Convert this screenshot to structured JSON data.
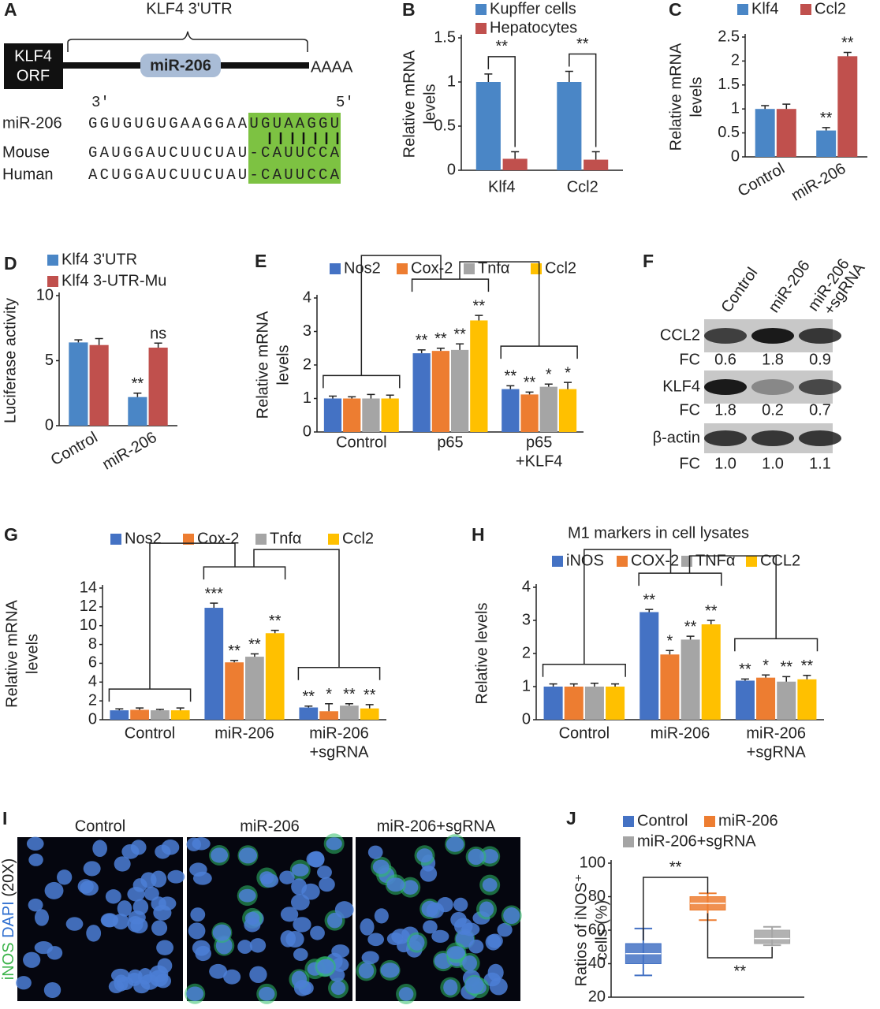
{
  "diagram": {
    "panel": "A",
    "utr_label": "KLF4 3'UTR",
    "orf_label": [
      "KLF4",
      "ORF"
    ],
    "mirna_box": "miR-206",
    "polya": "AAAA",
    "end_left": "3'",
    "end_right": "5'",
    "rows": [
      {
        "name": "miR-206",
        "sequence": "GGUGUGUGAAGGAAUGUAAGGU"
      },
      {
        "name": "Mouse",
        "sequence": "GAUGGAUCUUCUAU-CAUUCCA"
      },
      {
        "name": "Human",
        "sequence": "ACUGGAUCUUCUAU-CAUUCCA"
      }
    ]
  },
  "blot": {
    "panel": "F",
    "columns": [
      "Control",
      "miR-206",
      [
        "miR-206",
        "+sgRNA"
      ]
    ],
    "rows": [
      {
        "protein": "CCL2",
        "fc_label": "FC",
        "fc": [
          "0.6",
          "1.8",
          "0.9"
        ]
      },
      {
        "protein": "KLF4",
        "fc_label": "FC",
        "fc": [
          "1.8",
          "0.2",
          "0.7"
        ]
      },
      {
        "protein": "β-actin",
        "fc_label": "FC",
        "fc": [
          "1.0",
          "1.0",
          "1.1"
        ]
      }
    ]
  },
  "images": {
    "panel": "I",
    "columns": [
      "Control",
      "miR-206",
      "miR-206+sgRNA"
    ],
    "stain_labels": [
      "iNOS",
      "DAPI",
      "(20X)"
    ]
  },
  "chart_data": [
    {
      "type": "bar",
      "panel": "B",
      "y_label": [
        "Relative mRNA",
        "levels"
      ],
      "categories": [
        "Klf4",
        "Ccl2"
      ],
      "ylim": [
        0,
        1.5
      ],
      "yticks": [
        0,
        0.5,
        1,
        1.5
      ],
      "series": [
        {
          "name": "Kupffer cells",
          "color": "#4a86c6",
          "values": [
            1,
            1
          ],
          "errors": [
            0.09,
            0.12
          ]
        },
        {
          "name": "Hepatocytes",
          "color": "#c0504d",
          "values": [
            0.13,
            0.12
          ],
          "errors": [
            0.08,
            0.09
          ]
        }
      ],
      "bracket_labels": [
        "**",
        "**"
      ]
    },
    {
      "type": "bar",
      "panel": "C",
      "y_label": [
        "Relative mRNA",
        "levels"
      ],
      "categories": [
        "Control",
        "miR-206"
      ],
      "ylim": [
        0,
        2.5
      ],
      "yticks": [
        0,
        0.5,
        1,
        1.5,
        2,
        2.5
      ],
      "series": [
        {
          "name": "Klf4",
          "color": "#4a86c6",
          "values": [
            1,
            0.55
          ],
          "errors": [
            0.07,
            0.06
          ],
          "annotations": [
            null,
            "**"
          ]
        },
        {
          "name": "Ccl2",
          "color": "#c0504d",
          "values": [
            1,
            2.1
          ],
          "errors": [
            0.1,
            0.08
          ],
          "annotations": [
            null,
            "**"
          ]
        }
      ]
    },
    {
      "type": "bar",
      "panel": "D",
      "y_label": "Luciferase activity",
      "categories": [
        "Control",
        "miR-206"
      ],
      "ylim": [
        0,
        10
      ],
      "yticks": [
        0,
        5,
        10
      ],
      "series": [
        {
          "name": "Klf4 3'UTR",
          "color": "#4a86c6",
          "values": [
            6.4,
            2.2
          ],
          "errors": [
            0.2,
            0.3
          ],
          "annotations": [
            null,
            "**"
          ]
        },
        {
          "name": "Klf4 3-UTR-Mu",
          "color": "#c0504d",
          "values": [
            6.2,
            6.0
          ],
          "errors": [
            0.5,
            0.35
          ],
          "annotations": [
            null,
            "ns"
          ]
        }
      ]
    },
    {
      "type": "bar",
      "panel": "E",
      "y_label": [
        "Relative mRNA",
        "levels"
      ],
      "categories": [
        "Control",
        "p65",
        [
          "p65",
          "+KLF4"
        ]
      ],
      "ylim": [
        0,
        4
      ],
      "yticks": [
        0,
        1,
        2,
        3,
        4
      ],
      "series": [
        {
          "name": "Nos2",
          "color": "#4472c4",
          "values": [
            1,
            2.35,
            1.28
          ],
          "errors": [
            0.07,
            0.1,
            0.1
          ],
          "annotations": [
            null,
            "**",
            "**"
          ]
        },
        {
          "name": "Cox-2",
          "color": "#ed7d31",
          "values": [
            1,
            2.42,
            1.12
          ],
          "errors": [
            0.05,
            0.08,
            0.07
          ],
          "annotations": [
            null,
            "**",
            "**"
          ]
        },
        {
          "name": "Tnfα",
          "color": "#a5a5a5",
          "values": [
            1,
            2.45,
            1.35
          ],
          "errors": [
            0.12,
            0.18,
            0.08
          ],
          "annotations": [
            null,
            "**",
            "*"
          ]
        },
        {
          "name": "Ccl2",
          "color": "#ffc000",
          "values": [
            1,
            3.33,
            1.28
          ],
          "errors": [
            0.1,
            0.15,
            0.2
          ],
          "annotations": [
            null,
            "**",
            "*"
          ]
        }
      ]
    },
    {
      "type": "bar",
      "panel": "G",
      "y_label": [
        "Relative mRNA",
        "levels"
      ],
      "categories": [
        "Control",
        "miR-206",
        [
          "miR-206",
          "+sgRNA"
        ]
      ],
      "ylim": [
        0,
        14
      ],
      "yticks": [
        0,
        2,
        4,
        6,
        8,
        10,
        12,
        14
      ],
      "series": [
        {
          "name": "Nos2",
          "color": "#4472c4",
          "values": [
            1,
            11.9,
            1.3
          ],
          "errors": [
            0.15,
            0.5,
            0.15
          ],
          "annotations": [
            null,
            "***",
            "**"
          ]
        },
        {
          "name": "Cox-2",
          "color": "#ed7d31",
          "values": [
            1.05,
            6.1,
            0.9
          ],
          "errors": [
            0.2,
            0.2,
            0.8
          ],
          "annotations": [
            null,
            "**",
            "*"
          ]
        },
        {
          "name": "Tnfα",
          "color": "#a5a5a5",
          "values": [
            1,
            6.7,
            1.5
          ],
          "errors": [
            0.1,
            0.3,
            0.2
          ],
          "annotations": [
            null,
            "**",
            "**"
          ]
        },
        {
          "name": "Ccl2",
          "color": "#ffc000",
          "values": [
            1,
            9.2,
            1.2
          ],
          "errors": [
            0.25,
            0.3,
            0.4
          ],
          "annotations": [
            null,
            "**",
            "**"
          ]
        }
      ]
    },
    {
      "type": "bar",
      "panel": "H",
      "title": "M1 markers in cell lysates",
      "y_label": "Relative  levels",
      "categories": [
        "Control",
        "miR-206",
        [
          "miR-206",
          "+sgRNA"
        ]
      ],
      "ylim": [
        0,
        4
      ],
      "yticks": [
        0,
        1,
        2,
        3,
        4
      ],
      "series": [
        {
          "name": "iNOS",
          "color": "#4472c4",
          "values": [
            1,
            3.25,
            1.18
          ],
          "errors": [
            0.08,
            0.08,
            0.05
          ],
          "annotations": [
            null,
            "**",
            "**"
          ]
        },
        {
          "name": "COX-2",
          "color": "#ed7d31",
          "values": [
            1,
            1.97,
            1.27
          ],
          "errors": [
            0.08,
            0.12,
            0.08
          ],
          "annotations": [
            null,
            "*",
            "*"
          ]
        },
        {
          "name": "TNFα",
          "color": "#a5a5a5",
          "values": [
            1,
            2.42,
            1.15
          ],
          "errors": [
            0.1,
            0.1,
            0.15
          ],
          "annotations": [
            null,
            "**",
            "**"
          ]
        },
        {
          "name": "CCL2",
          "color": "#ffc000",
          "values": [
            1,
            2.88,
            1.22
          ],
          "errors": [
            0.08,
            0.12,
            0.12
          ],
          "annotations": [
            null,
            "**",
            "**"
          ]
        }
      ]
    },
    {
      "type": "box",
      "panel": "J",
      "y_label": [
        "Ratios of iNOS⁺",
        "cells (%)"
      ],
      "categories": [
        "Control",
        "miR-206",
        "miR-206+sgRNA"
      ],
      "colors": [
        "#4472c4",
        "#ed7d31",
        "#a5a5a5"
      ],
      "ylim": [
        20,
        100
      ],
      "yticks": [
        20,
        40,
        60,
        80,
        100
      ],
      "boxes": [
        {
          "min": 33,
          "q1": 40,
          "median": 46,
          "q3": 52,
          "max": 61
        },
        {
          "min": 66,
          "q1": 72,
          "median": 76,
          "q3": 80,
          "max": 82
        },
        {
          "min": 51,
          "q1": 52,
          "median": 55,
          "q3": 60,
          "max": 62
        }
      ],
      "bracket_labels": [
        "**",
        "**"
      ]
    }
  ]
}
